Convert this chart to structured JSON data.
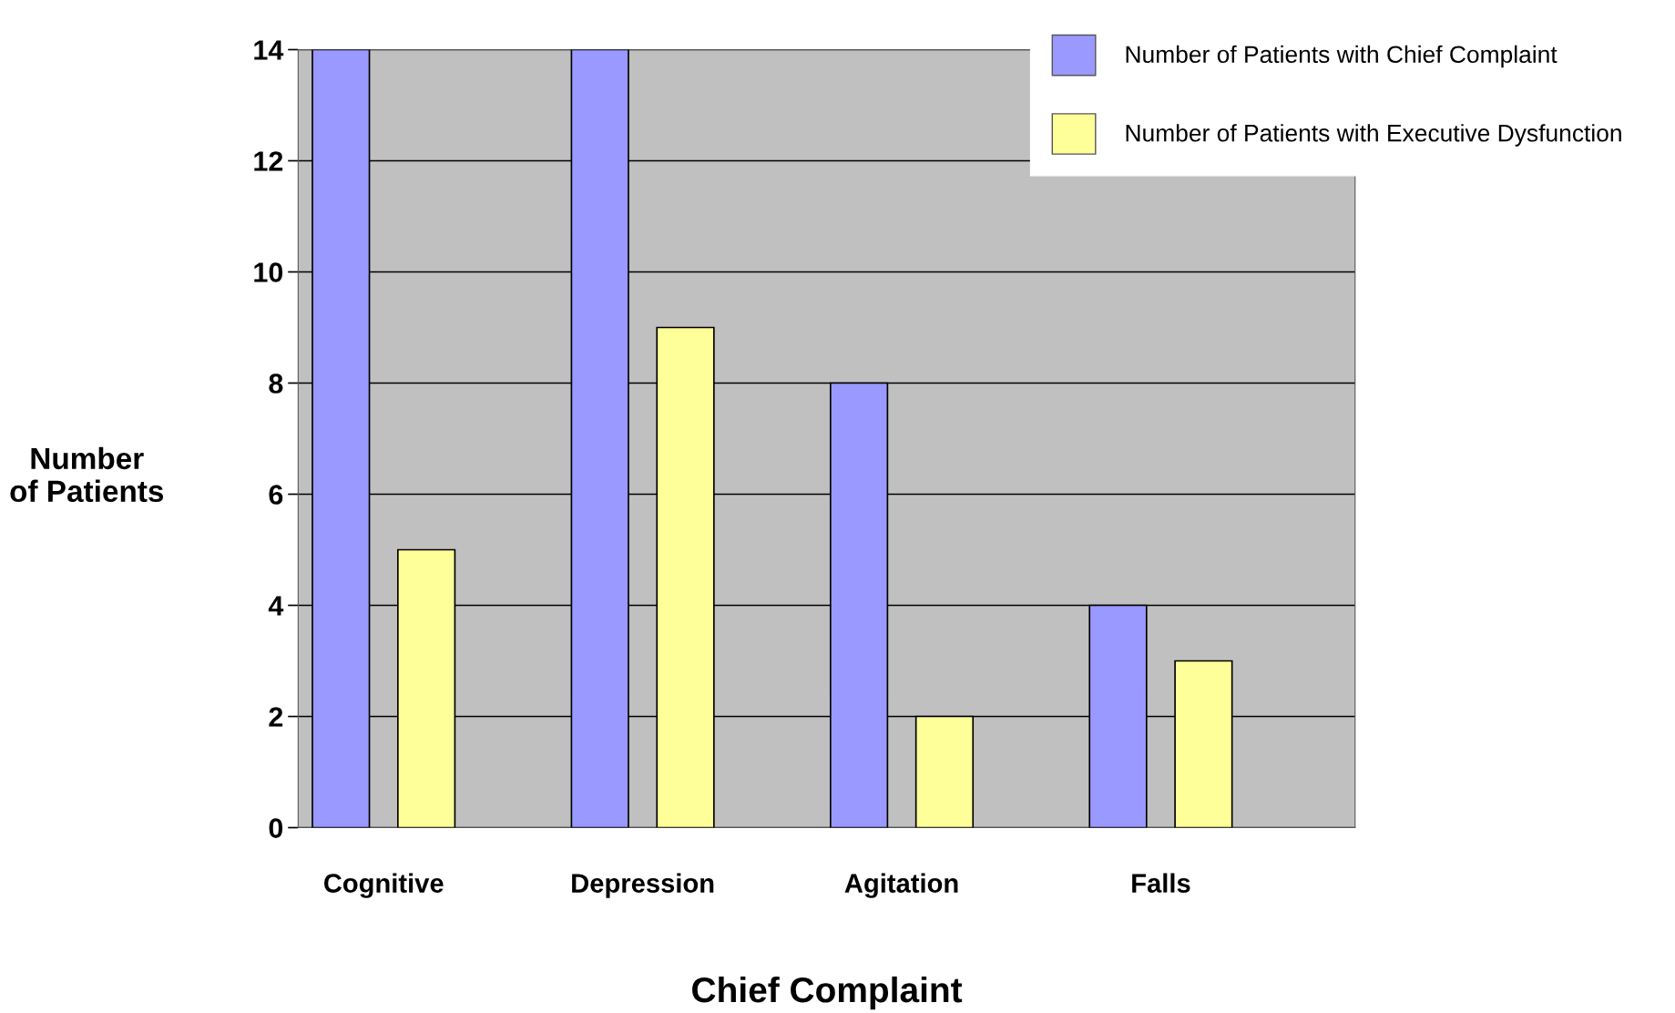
{
  "chart_data": {
    "type": "bar",
    "xlabel": "Chief Complaint",
    "ylabel": "Number\nof Patients",
    "categories": [
      "Cognitive",
      "Depression",
      "Agitation",
      "Falls"
    ],
    "series": [
      {
        "name": "Number of Patients with Chief Complaint",
        "color": "#9999ff",
        "values": [
          14,
          14,
          8,
          4
        ]
      },
      {
        "name": "Number of Patients with Executive Dysfunction",
        "color": "#ffff99",
        "values": [
          5,
          9,
          2,
          3
        ]
      }
    ],
    "ylim": [
      0,
      14
    ],
    "yticks": [
      0,
      2,
      4,
      6,
      8,
      10,
      12,
      14
    ],
    "grid": "y",
    "legend": "top right"
  }
}
